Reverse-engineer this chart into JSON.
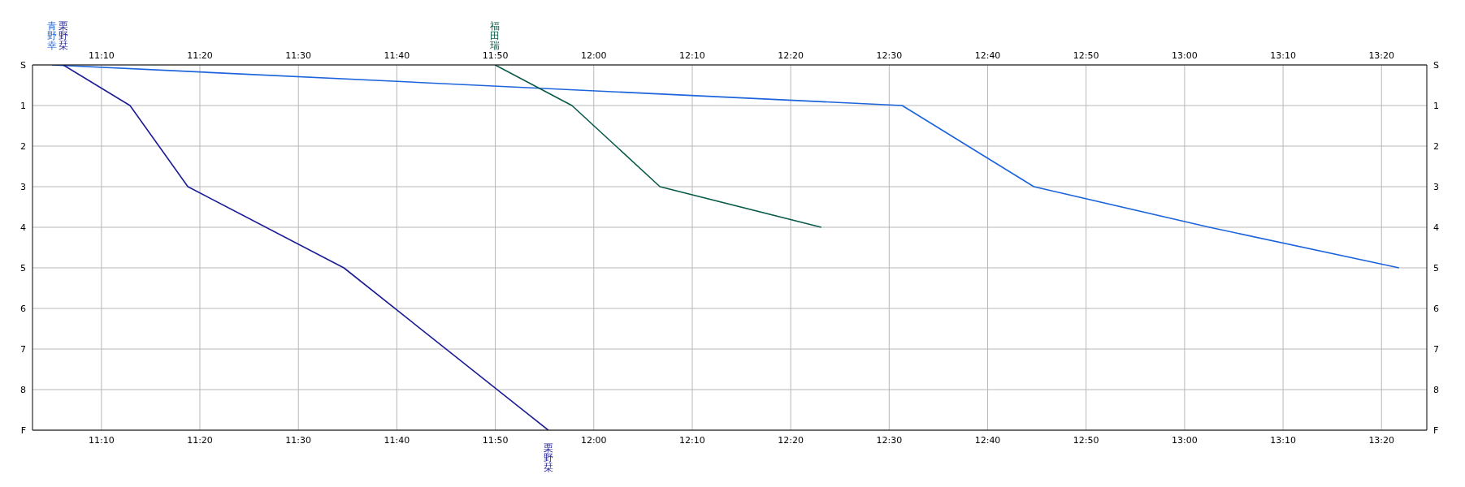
{
  "chart_data": {
    "type": "line",
    "series": [
      {
        "name": "青野幸",
        "color": "#1c64dc",
        "x": [
          11.083,
          12.522,
          12.745,
          13.042,
          13.363
        ],
        "values": [
          0,
          1,
          3,
          4,
          5
        ]
      },
      {
        "name": "栗野栞",
        "color": "#1c1c96",
        "x": [
          11.102,
          11.215,
          11.313,
          11.577,
          11.923
        ],
        "values": [
          0,
          1,
          3,
          5,
          9
        ]
      },
      {
        "name": "福田瑞",
        "color": "#0a5a4a",
        "x": [
          11.833,
          11.963,
          12.112,
          12.385
        ],
        "values": [
          0,
          1,
          3,
          4
        ]
      }
    ],
    "xlim": [
      11.05,
      13.41
    ],
    "xticks": [
      {
        "value": 11.1667,
        "label": "11:10"
      },
      {
        "value": 11.3333,
        "label": "11:20"
      },
      {
        "value": 11.5,
        "label": "11:30"
      },
      {
        "value": 11.6667,
        "label": "11:40"
      },
      {
        "value": 11.8333,
        "label": "11:50"
      },
      {
        "value": 12,
        "label": "12:00"
      },
      {
        "value": 12.1667,
        "label": "12:10"
      },
      {
        "value": 12.3333,
        "label": "12:20"
      },
      {
        "value": 12.5,
        "label": "12:30"
      },
      {
        "value": 12.6667,
        "label": "12:40"
      },
      {
        "value": 12.8333,
        "label": "12:50"
      },
      {
        "value": 13,
        "label": "13:00"
      },
      {
        "value": 13.1667,
        "label": "13:10"
      },
      {
        "value": 13.3333,
        "label": "13:20"
      }
    ],
    "x2lim": [
      11.05,
      13.41
    ],
    "x2ticks": [
      {
        "value": 11.1667,
        "label": "11:10"
      },
      {
        "value": 11.3333,
        "label": "11:20"
      },
      {
        "value": 11.5,
        "label": "11:30"
      },
      {
        "value": 11.6667,
        "label": "11:40"
      },
      {
        "value": 11.8333,
        "label": "11:50"
      },
      {
        "value": 12,
        "label": "12:00"
      },
      {
        "value": 12.1667,
        "label": "12:10"
      },
      {
        "value": 12.3333,
        "label": "12:20"
      },
      {
        "value": 12.5,
        "label": "12:30"
      },
      {
        "value": 12.6667,
        "label": "12:40"
      },
      {
        "value": 12.8333,
        "label": "12:50"
      },
      {
        "value": 13,
        "label": "13:00"
      },
      {
        "value": 13.1667,
        "label": "13:10"
      },
      {
        "value": 13.3333,
        "label": "13:20"
      }
    ],
    "ylim": [
      9,
      0
    ],
    "yticks": [
      {
        "value": 0,
        "label": "S"
      },
      1,
      2,
      3,
      4,
      5,
      6,
      7,
      8,
      {
        "value": 9,
        "label": "F"
      }
    ],
    "y2lim": [
      9,
      0
    ],
    "y2ticks": [
      {
        "value": 0,
        "label": "S"
      },
      1,
      2,
      3,
      4,
      5,
      6,
      7,
      8,
      {
        "value": 9,
        "label": "F"
      }
    ],
    "grid": true,
    "marker": "none",
    "line_style": "solid"
  }
}
